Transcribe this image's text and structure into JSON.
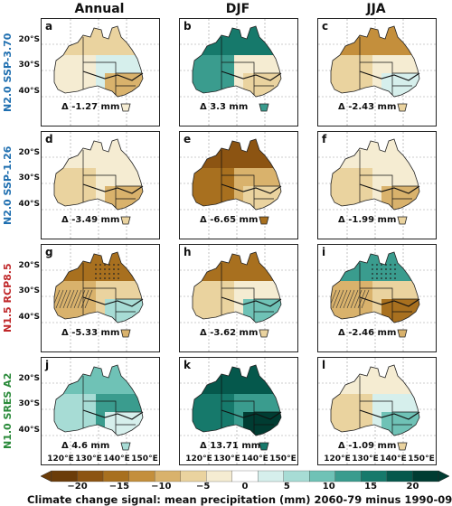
{
  "columns": [
    "Annual",
    "DJF",
    "JJA"
  ],
  "rows": [
    {
      "label": "N2.0 SSP-3.70",
      "color": "#1f6fb0"
    },
    {
      "label": "N2.0 SSP-1.26",
      "color": "#1f6fb0"
    },
    {
      "label": "N1.5 RCP8.5",
      "color": "#c0282a"
    },
    {
      "label": "N1.0 SRES A2",
      "color": "#2a8a3a"
    }
  ],
  "panels": [
    {
      "letter": "a",
      "delta": "Δ -1.27 mm",
      "pattern": "mixed_dry",
      "hatch": false,
      "stipple": false
    },
    {
      "letter": "b",
      "delta": "Δ 3.3 mm",
      "pattern": "wet_west",
      "hatch": false,
      "stipple": false
    },
    {
      "letter": "c",
      "delta": "Δ -2.43 mm",
      "pattern": "dry_edges",
      "hatch": false,
      "stipple": false
    },
    {
      "letter": "d",
      "delta": "Δ -3.49 mm",
      "pattern": "mild_dry",
      "hatch": false,
      "stipple": false
    },
    {
      "letter": "e",
      "delta": "Δ -6.65 mm",
      "pattern": "strong_dry_north",
      "hatch": false,
      "stipple": false
    },
    {
      "letter": "f",
      "delta": "Δ -1.99 mm",
      "pattern": "mild_dry",
      "hatch": false,
      "stipple": false
    },
    {
      "letter": "g",
      "delta": "Δ -5.33 mm",
      "pattern": "dry_north_wet_spots",
      "hatch": true,
      "stipple": true
    },
    {
      "letter": "h",
      "delta": "Δ -3.62 mm",
      "pattern": "dry_north_wet_east",
      "hatch": false,
      "stipple": false
    },
    {
      "letter": "i",
      "delta": "Δ -2.46 mm",
      "pattern": "wet_west_dry",
      "hatch": true,
      "stipple": true
    },
    {
      "letter": "j",
      "delta": "Δ 4.6 mm",
      "pattern": "wet",
      "hatch": false,
      "stipple": false
    },
    {
      "letter": "k",
      "delta": "Δ 13.71 mm",
      "pattern": "very_wet",
      "hatch": false,
      "stipple": false
    },
    {
      "letter": "l",
      "delta": "Δ -1.09 mm",
      "pattern": "mild_dry_wet_se",
      "hatch": false,
      "stipple": false
    }
  ],
  "lat_labels": [
    "20°S",
    "30°S",
    "40°S"
  ],
  "lon_labels": [
    "120°E",
    "130°E",
    "140°E",
    "150°E"
  ],
  "colorbar": {
    "ticks": [
      "−20",
      "−15",
      "−10",
      "−5",
      "0",
      "5",
      "10",
      "15",
      "20"
    ],
    "colors": [
      "#6b3c09",
      "#8c5412",
      "#a8701f",
      "#c48f3c",
      "#d9b26c",
      "#ead39f",
      "#f5ecd2",
      "#ffffff",
      "#d6efec",
      "#a7dcd5",
      "#6fc2b6",
      "#3a9c8e",
      "#16796b",
      "#05584c",
      "#003c32"
    ],
    "title": "Climate change signal: mean precipitation (mm) 2060-79 minus 1990-09"
  }
}
